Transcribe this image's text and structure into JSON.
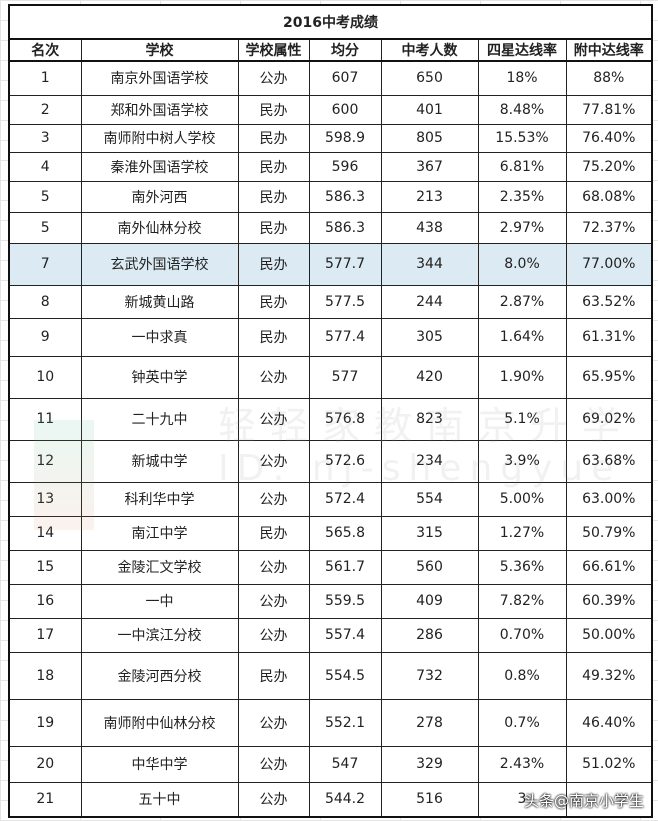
{
  "title": "2016中考成绩",
  "columns": [
    "名次",
    "学校",
    "学校属性",
    "均分",
    "中考人数",
    "四星达线率",
    "附中达线率"
  ],
  "rows": [
    [
      "1",
      "南京外国语学校",
      "公办",
      "607",
      "650",
      "18%",
      "88%"
    ],
    [
      "2",
      "郑和外国语学校",
      "民办",
      "600",
      "401",
      "8.48%",
      "77.81%"
    ],
    [
      "3",
      "南师附中树人学校",
      "民办",
      "598.9",
      "805",
      "15.53%",
      "76.40%"
    ],
    [
      "4",
      "秦淮外国语学校",
      "民办",
      "596",
      "367",
      "6.81%",
      "75.20%"
    ],
    [
      "5",
      "南外河西",
      "民办",
      "586.3",
      "213",
      "2.35%",
      "68.08%"
    ],
    [
      "5",
      "南外仙林分校",
      "民办",
      "586.3",
      "438",
      "2.97%",
      "72.37%"
    ],
    [
      "7",
      "玄武外国语学校",
      "民办",
      "577.7",
      "344",
      "8.0%",
      "77.00%"
    ],
    [
      "8",
      "新城黄山路",
      "民办",
      "577.5",
      "244",
      "2.87%",
      "63.52%"
    ],
    [
      "9",
      "一中求真",
      "民办",
      "577.4",
      "305",
      "1.64%",
      "61.31%"
    ],
    [
      "10",
      "钟英中学",
      "公办",
      "577",
      "420",
      "1.90%",
      "65.95%"
    ],
    [
      "11",
      "二十九中",
      "公办",
      "576.8",
      "823",
      "5.1%",
      "69.02%"
    ],
    [
      "12",
      "新城中学",
      "公办",
      "572.6",
      "234",
      "3.9%",
      "63.68%"
    ],
    [
      "13",
      "科利华中学",
      "公办",
      "572.4",
      "554",
      "5.00%",
      "63.00%"
    ],
    [
      "14",
      "南江中学",
      "民办",
      "565.8",
      "315",
      "1.27%",
      "50.79%"
    ],
    [
      "15",
      "金陵汇文学校",
      "公办",
      "561.7",
      "560",
      "5.36%",
      "66.61%"
    ],
    [
      "16",
      "一中",
      "公办",
      "559.5",
      "409",
      "7.82%",
      "60.39%"
    ],
    [
      "17",
      "一中滨江分校",
      "公办",
      "557.4",
      "286",
      "0.70%",
      "50.00%"
    ],
    [
      "18",
      "金陵河西分校",
      "民办",
      "554.5",
      "732",
      "0.8%",
      "49.32%"
    ],
    [
      "19",
      "南师附中仙林分校",
      "公办",
      "552.1",
      "278",
      "0.7%",
      "46.40%"
    ],
    [
      "20",
      "中华中学",
      "公办",
      "547",
      "329",
      "2.43%",
      "51.02%"
    ],
    [
      "21",
      "五十中",
      "公办",
      "544.2",
      "516",
      "3",
      ""
    ]
  ],
  "highlight_row_color": "#dcebf3",
  "watermark": {
    "line1": "轻轻家教南京升学",
    "line2": "ID: nj-shengyue",
    "corner": "头条@南京小学生"
  }
}
